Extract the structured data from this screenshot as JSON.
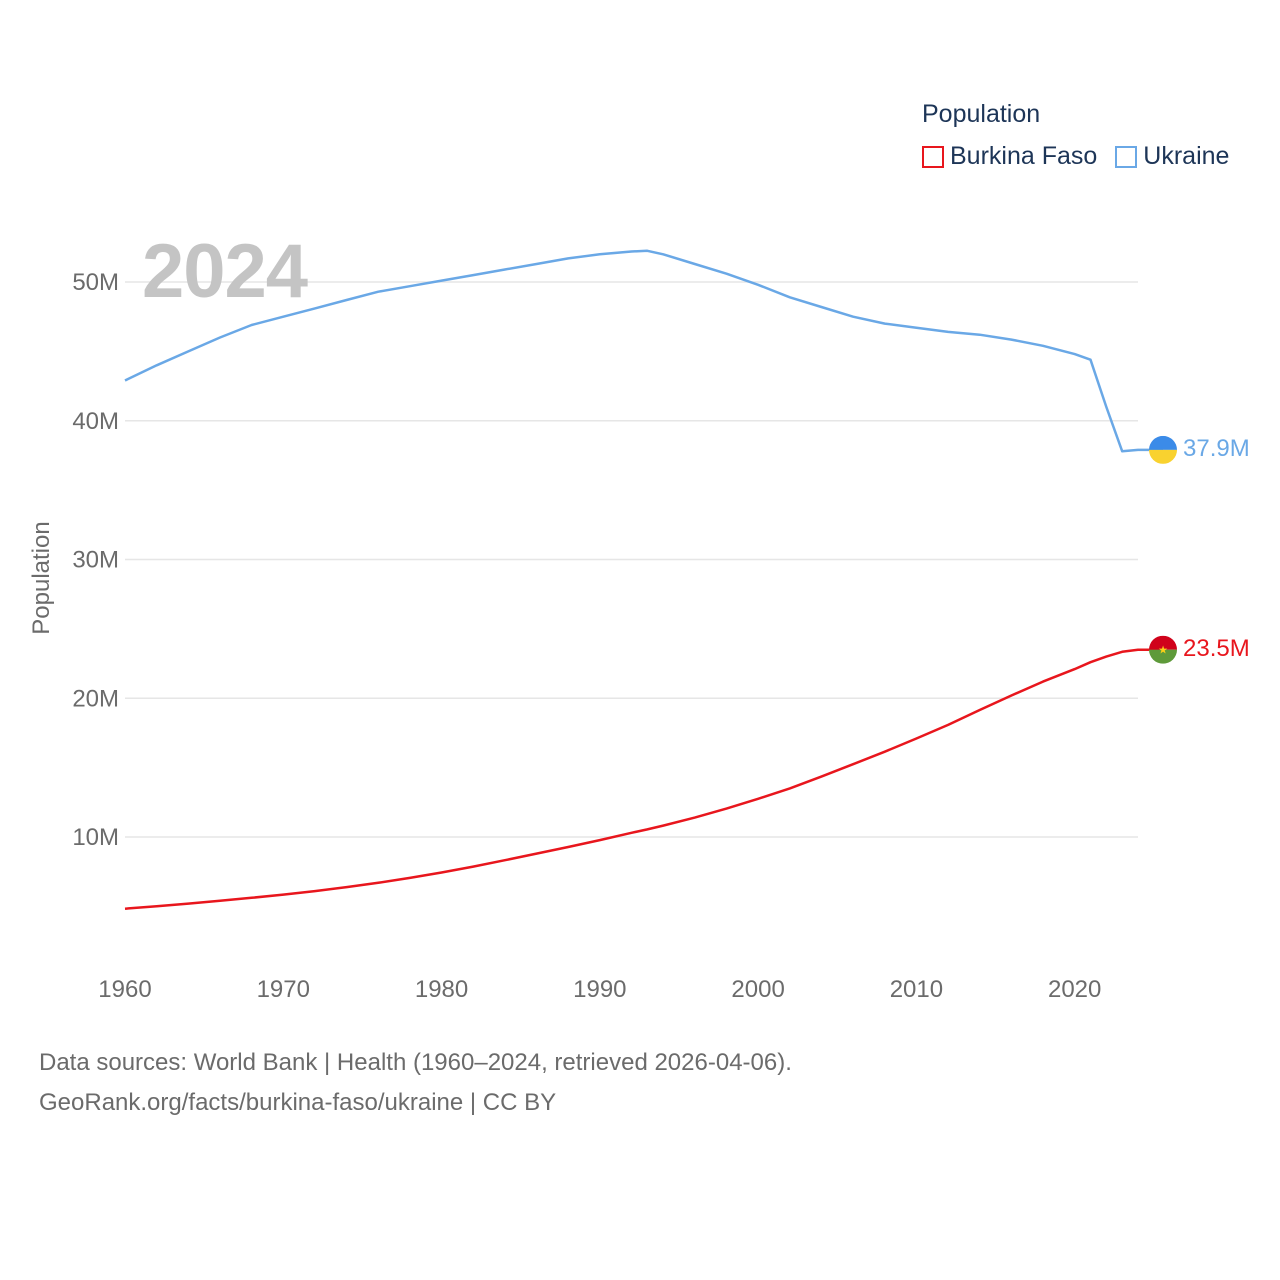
{
  "chart_data": {
    "type": "line",
    "title": "",
    "legend_title": "Population",
    "year_display": "2024",
    "ylabel": "Population",
    "xlabel": "",
    "xlim": [
      1960,
      2024
    ],
    "ylim": [
      0,
      55000000
    ],
    "x_ticks": [
      "1960",
      "1970",
      "1980",
      "1990",
      "2000",
      "2010",
      "2020"
    ],
    "y_ticks": [
      {
        "value": 10000000,
        "label": "10M"
      },
      {
        "value": 20000000,
        "label": "20M"
      },
      {
        "value": 30000000,
        "label": "30M"
      },
      {
        "value": 40000000,
        "label": "40M"
      },
      {
        "value": 50000000,
        "label": "50M"
      }
    ],
    "x": [
      1960,
      1962,
      1964,
      1966,
      1968,
      1970,
      1972,
      1974,
      1976,
      1978,
      1980,
      1982,
      1984,
      1986,
      1988,
      1990,
      1992,
      1993,
      1994,
      1996,
      1998,
      2000,
      2002,
      2004,
      2006,
      2008,
      2010,
      2012,
      2014,
      2016,
      2018,
      2020,
      2021,
      2022,
      2023,
      2024
    ],
    "series": [
      {
        "name": "Burkina Faso",
        "color": "#e8161d",
        "end_label": "23.5M",
        "flag": "burkina-faso-flag-icon",
        "values": [
          4830000,
          5010000,
          5200000,
          5410000,
          5620000,
          5850000,
          6100000,
          6390000,
          6700000,
          7050000,
          7440000,
          7870000,
          8330000,
          8800000,
          9280000,
          9780000,
          10300000,
          10550000,
          10820000,
          11400000,
          12050000,
          12750000,
          13500000,
          14350000,
          15250000,
          16150000,
          17100000,
          18080000,
          19150000,
          20200000,
          21200000,
          22100000,
          22600000,
          23000000,
          23350000,
          23500000
        ]
      },
      {
        "name": "Ukraine",
        "color": "#6aa8e6",
        "end_label": "37.9M",
        "flag": "ukraine-flag-icon",
        "values": [
          42900000,
          44000000,
          45000000,
          46000000,
          46900000,
          47500000,
          48100000,
          48700000,
          49300000,
          49700000,
          50100000,
          50500000,
          50900000,
          51300000,
          51700000,
          52000000,
          52200000,
          52250000,
          52000000,
          51300000,
          50600000,
          49800000,
          48900000,
          48200000,
          47500000,
          47000000,
          46700000,
          46400000,
          46200000,
          45850000,
          45400000,
          44800000,
          44400000,
          41000000,
          37800000,
          37900000
        ]
      }
    ]
  },
  "footer": {
    "line1": "Data sources: World Bank | Health (1960–2024, retrieved 2026-04-06).",
    "line2": "GeoRank.org/facts/burkina-faso/ukraine | CC BY"
  }
}
